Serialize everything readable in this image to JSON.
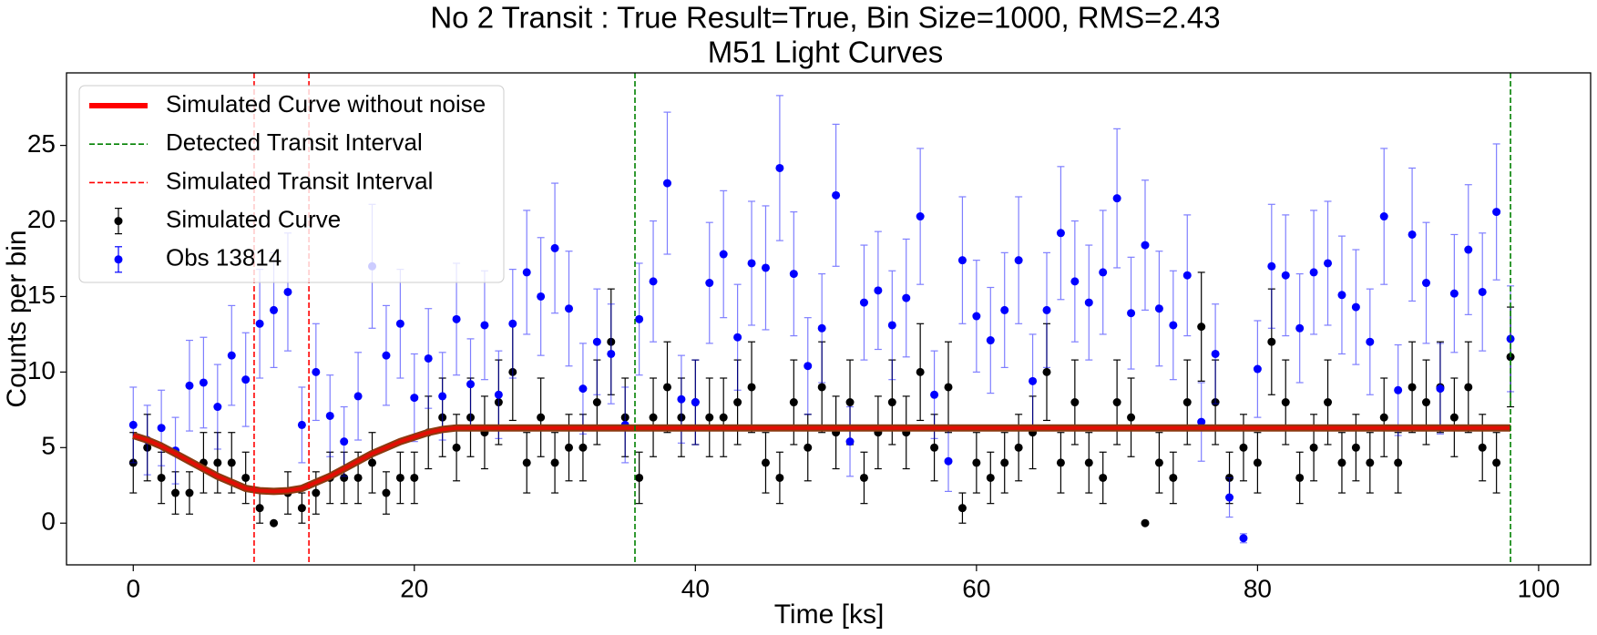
{
  "chart_data": {
    "type": "errorbar",
    "title": "No 2 Transit : True Result=True, Bin Size=1000, RMS=2.43",
    "subtitle": "M51 Light Curves",
    "x_label": "Time [ks]",
    "y_label": "Counts per bin",
    "xlim": [
      -4.75,
      103.7
    ],
    "ylim": [
      -2.76,
      29.8
    ],
    "xticks": [
      0,
      20,
      40,
      60,
      80,
      100
    ],
    "yticks": [
      0,
      5,
      10,
      15,
      20,
      25
    ],
    "legend": "upper left",
    "x": [
      0,
      1,
      2,
      3,
      4,
      5,
      6,
      7,
      8,
      9,
      10,
      11,
      12,
      13,
      14,
      15,
      16,
      17,
      18,
      19,
      20,
      21,
      22,
      23,
      24,
      25,
      26,
      27,
      28,
      29,
      30,
      31,
      32,
      33,
      34,
      35,
      36,
      37,
      38,
      39,
      40,
      41,
      42,
      43,
      44,
      45,
      46,
      47,
      48,
      49,
      50,
      51,
      52,
      53,
      54,
      55,
      56,
      57,
      58,
      59,
      60,
      61,
      62,
      63,
      64,
      65,
      66,
      67,
      68,
      69,
      70,
      71,
      72,
      73,
      74,
      75,
      76,
      77,
      78,
      79,
      80,
      81,
      82,
      83,
      84,
      85,
      86,
      87,
      88,
      89,
      90,
      91,
      92,
      93,
      94,
      95,
      96,
      97,
      98
    ],
    "series": [
      {
        "name": "Simulated Curve without noise",
        "color": "#ff0000",
        "kind": "line",
        "x": [
          0,
          1,
          2,
          3,
          4,
          5,
          6,
          7,
          8,
          9,
          10,
          11,
          12,
          13,
          14,
          15,
          16,
          17,
          18,
          19,
          20,
          21,
          22,
          23,
          98
        ],
        "values": [
          5.8,
          5.5,
          5.1,
          4.6,
          4.1,
          3.6,
          3.1,
          2.7,
          2.3,
          2.15,
          2.1,
          2.15,
          2.3,
          2.7,
          3.1,
          3.6,
          4.1,
          4.6,
          5.0,
          5.4,
          5.7,
          6.0,
          6.2,
          6.3,
          6.3
        ]
      },
      {
        "name": "Simulated Curve",
        "color": "#000000",
        "kind": "points",
        "values": [
          4,
          5,
          3,
          2,
          2,
          4,
          4,
          4,
          3,
          1,
          0,
          2,
          1,
          2,
          3,
          3,
          3,
          4,
          2,
          3,
          3,
          6,
          7,
          5,
          7,
          6,
          8,
          10,
          4,
          7,
          4,
          5,
          5,
          8,
          12,
          7,
          3,
          7,
          9,
          7,
          8,
          7,
          7,
          8,
          9,
          4,
          3,
          8,
          5,
          9,
          6,
          8,
          3,
          6,
          8,
          6,
          10,
          5,
          9,
          1,
          4,
          3,
          4,
          5,
          6,
          10,
          4,
          8,
          4,
          3,
          8,
          7,
          0,
          4,
          3,
          8,
          13,
          8,
          3,
          5,
          4,
          12,
          8,
          3,
          5,
          8,
          4,
          5,
          4,
          7,
          4,
          9,
          8,
          9,
          7,
          9,
          5,
          4,
          11
        ],
        "errors": [
          2,
          2.2,
          1.7,
          1.4,
          1.4,
          2,
          2,
          2,
          1.7,
          1,
          0,
          1.4,
          1,
          1.4,
          1.7,
          1.7,
          1.7,
          2,
          1.4,
          1.7,
          1.7,
          2.4,
          2.6,
          2.2,
          2.6,
          2.4,
          2.8,
          3.2,
          2,
          2.6,
          2,
          2.2,
          2.2,
          2.8,
          3.5,
          2.6,
          1.7,
          2.6,
          3,
          2.6,
          2.8,
          2.6,
          2.6,
          2.8,
          3,
          2,
          1.7,
          2.8,
          2.2,
          3,
          2.4,
          2.8,
          1.7,
          2.4,
          2.8,
          2.4,
          3.2,
          2.2,
          3,
          1,
          2,
          1.7,
          2,
          2.2,
          2.4,
          3.2,
          2,
          2.8,
          2,
          1.7,
          2.8,
          2.6,
          0,
          2,
          1.7,
          2.8,
          3.6,
          2.8,
          1.7,
          2.2,
          2,
          3.5,
          2.8,
          1.7,
          2.2,
          2.8,
          2,
          2.2,
          2,
          2.6,
          2,
          3,
          2.8,
          3,
          2.6,
          3,
          2.2,
          2,
          3.3
        ]
      },
      {
        "name": "Obs 13814",
        "color": "#0000ff",
        "kind": "points",
        "values": [
          6.5,
          5.5,
          6.3,
          4.8,
          9.1,
          9.3,
          7.7,
          11.1,
          9.5,
          13.2,
          14.1,
          15.3,
          6.5,
          10,
          7.1,
          5.4,
          8.4,
          17,
          11.1,
          13.2,
          8.3,
          10.9,
          8.4,
          13.5,
          9.2,
          13.1,
          8.5,
          13.2,
          16.6,
          15,
          18.2,
          14.2,
          8.9,
          12,
          11.2,
          6.5,
          13.5,
          16,
          22.5,
          8.2,
          8,
          15.9,
          17.8,
          12.3,
          17.2,
          16.9,
          23.5,
          16.5,
          10.4,
          12.9,
          21.7,
          5.4,
          14.6,
          15.4,
          13.1,
          14.9,
          20.3,
          8.5,
          4.1,
          17.4,
          13.7,
          12.1,
          14.1,
          17.4,
          9.4,
          14.1,
          19.2,
          16,
          14.6,
          16.6,
          21.5,
          13.9,
          18.4,
          14.2,
          13.1,
          16.4,
          6.7,
          11.2,
          1.7,
          -1,
          10.2,
          17,
          16.4,
          12.9,
          16.6,
          17.2,
          15.1,
          14.3,
          12,
          20.3,
          8.8,
          19.1,
          15.9,
          8.9,
          15.2,
          18.1,
          15.3,
          20.6,
          12.2
        ],
        "errors": [
          2.5,
          2.3,
          2.5,
          2.2,
          3,
          3,
          2.8,
          3.3,
          3.1,
          3.6,
          3.8,
          3.9,
          2.5,
          3.2,
          2.7,
          2.3,
          2.9,
          4.1,
          3.3,
          3.6,
          2.9,
          3.3,
          2.9,
          3.7,
          3,
          3.6,
          2.9,
          3.6,
          4.1,
          3.9,
          4.3,
          3.8,
          3,
          3.5,
          3.3,
          2.5,
          3.7,
          4,
          4.7,
          2.9,
          2.8,
          4,
          4.2,
          3.5,
          4.1,
          4.1,
          4.8,
          4.1,
          3.2,
          3.6,
          4.7,
          2.3,
          3.8,
          3.9,
          3.6,
          3.9,
          4.5,
          2.9,
          2,
          4.2,
          3.7,
          3.5,
          3.8,
          4.2,
          3.1,
          3.8,
          4.4,
          4,
          3.8,
          4.1,
          4.6,
          3.7,
          4.3,
          3.8,
          3.6,
          4,
          2.6,
          3.3,
          1.3,
          0.3,
          3.2,
          4.1,
          4,
          3.6,
          4.1,
          4.1,
          3.9,
          3.8,
          3.5,
          4.5,
          3,
          4.4,
          4,
          3,
          3.9,
          4.3,
          3.9,
          4.5,
          3.5
        ]
      }
    ],
    "vlines": [
      {
        "name": "Detected Transit Interval",
        "color": "#008000",
        "x": [
          35.7,
          98
        ]
      },
      {
        "name": "Simulated Transit Interval",
        "color": "#ff0000",
        "x": [
          8.6,
          12.5
        ]
      }
    ]
  }
}
